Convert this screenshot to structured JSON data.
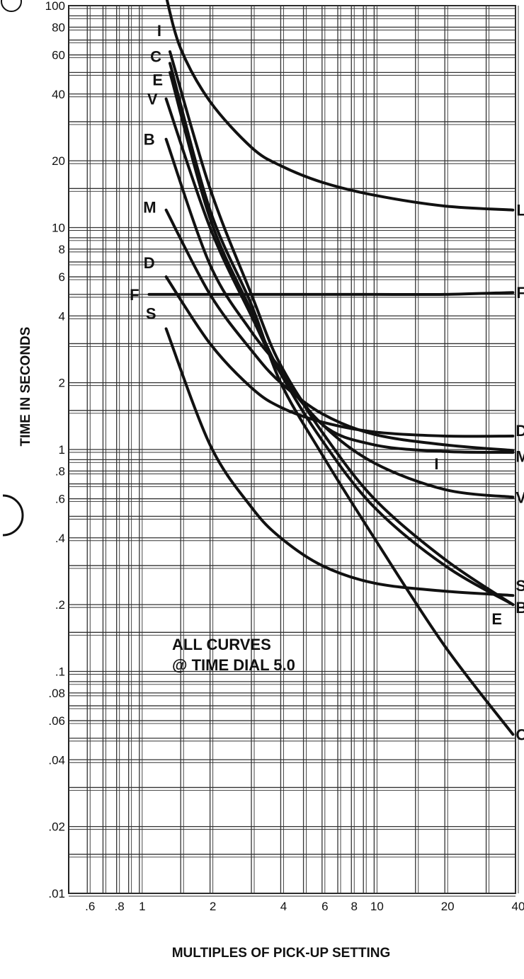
{
  "chart_data": {
    "type": "line",
    "x_scale": "log",
    "y_scale": "log",
    "xlim": [
      0.5,
      40
    ],
    "ylim": [
      0.01,
      100
    ],
    "grid": true,
    "xlabel": "MULTIPLES OF PICK-UP SETTING",
    "ylabel": "TIME IN SECONDS",
    "x_ticks": [
      {
        "value": 0.6,
        "label": ".6"
      },
      {
        "value": 0.8,
        "label": ".8"
      },
      {
        "value": 1,
        "label": "1"
      },
      {
        "value": 2,
        "label": "2"
      },
      {
        "value": 4,
        "label": "4"
      },
      {
        "value": 6,
        "label": "6"
      },
      {
        "value": 8,
        "label": "8"
      },
      {
        "value": 10,
        "label": "10"
      },
      {
        "value": 20,
        "label": "20"
      },
      {
        "value": 40,
        "label": "40"
      }
    ],
    "y_ticks": [
      {
        "value": 100,
        "label": "100"
      },
      {
        "value": 80,
        "label": "80"
      },
      {
        "value": 60,
        "label": "60"
      },
      {
        "value": 40,
        "label": "40"
      },
      {
        "value": 20,
        "label": "20"
      },
      {
        "value": 10,
        "label": "10"
      },
      {
        "value": 8,
        "label": "8"
      },
      {
        "value": 6,
        "label": "6"
      },
      {
        "value": 4,
        "label": "4"
      },
      {
        "value": 2,
        "label": "2"
      },
      {
        "value": 1,
        "label": "1"
      },
      {
        "value": 0.8,
        "label": ".8"
      },
      {
        "value": 0.6,
        "label": ".6"
      },
      {
        "value": 0.4,
        "label": ".4"
      },
      {
        "value": 0.2,
        "label": ".2"
      },
      {
        "value": 0.1,
        "label": ".1"
      },
      {
        "value": 0.08,
        "label": ".08"
      },
      {
        "value": 0.06,
        "label": ".06"
      },
      {
        "value": 0.04,
        "label": ".04"
      },
      {
        "value": 0.02,
        "label": ".02"
      },
      {
        "value": 0.01,
        "label": ".01"
      }
    ],
    "annotation": [
      "ALL CURVES",
      "@ TIME DIAL 5.0"
    ],
    "series": [
      {
        "name": "L",
        "x": [
          1.3,
          1.5,
          2,
          3,
          4,
          6,
          10,
          20,
          39
        ],
        "y": [
          110,
          64,
          37,
          23,
          19,
          16,
          14,
          12.5,
          12
        ]
      },
      {
        "name": "F",
        "x": [
          1.1,
          2,
          5,
          10,
          20,
          39
        ],
        "y": [
          5.0,
          5.0,
          5.0,
          5.0,
          5.0,
          5.1
        ]
      },
      {
        "name": "I",
        "x": [
          1.35,
          2,
          3,
          4,
          6,
          10,
          20,
          39
        ],
        "y": [
          62,
          15,
          5,
          2.4,
          1.3,
          1.05,
          0.98,
          0.97
        ]
      },
      {
        "name": "C",
        "x": [
          1.35,
          2,
          3,
          4,
          6,
          10,
          20,
          39
        ],
        "y": [
          55,
          12,
          4.5,
          2.0,
          0.95,
          0.4,
          0.13,
          0.052
        ]
      },
      {
        "name": "E",
        "x": [
          1.35,
          2,
          3,
          4,
          6,
          10,
          20,
          39
        ],
        "y": [
          50,
          11,
          4.2,
          2.2,
          1.1,
          0.55,
          0.3,
          0.2
        ]
      },
      {
        "name": "V",
        "x": [
          1.3,
          2,
          3,
          4,
          6,
          10,
          20,
          39
        ],
        "y": [
          38,
          10,
          4.0,
          2.2,
          1.3,
          0.87,
          0.66,
          0.61
        ]
      },
      {
        "name": "B",
        "x": [
          1.3,
          2,
          3,
          4,
          6,
          10,
          20,
          39
        ],
        "y": [
          25,
          6.8,
          3.4,
          2.3,
          1.2,
          0.6,
          0.32,
          0.2
        ]
      },
      {
        "name": "M",
        "x": [
          1.3,
          2,
          3,
          4,
          6,
          10,
          20,
          39
        ],
        "y": [
          12,
          5,
          2.8,
          2.0,
          1.45,
          1.17,
          1.05,
          0.99
        ]
      },
      {
        "name": "D",
        "x": [
          1.3,
          2,
          3,
          4,
          6,
          10,
          20,
          39
        ],
        "y": [
          6,
          3,
          1.9,
          1.55,
          1.33,
          1.2,
          1.15,
          1.15
        ]
      },
      {
        "name": "S",
        "x": [
          1.3,
          2,
          3,
          4,
          6,
          10,
          20,
          39
        ],
        "y": [
          3.5,
          1.05,
          0.55,
          0.4,
          0.3,
          0.25,
          0.23,
          0.22
        ]
      }
    ],
    "series_labels": [
      {
        "series": "L",
        "side": "start"
      },
      {
        "series": "I",
        "side": "start"
      },
      {
        "series": "C",
        "side": "start"
      },
      {
        "series": "E",
        "side": "start"
      },
      {
        "series": "V",
        "side": "start"
      },
      {
        "series": "B",
        "side": "start"
      },
      {
        "series": "M",
        "side": "start"
      },
      {
        "series": "D",
        "side": "start"
      },
      {
        "series": "F",
        "side": "start"
      },
      {
        "series": "S",
        "side": "start"
      },
      {
        "series": "L",
        "side": "end"
      },
      {
        "series": "F",
        "side": "end"
      },
      {
        "series": "D",
        "side": "end"
      },
      {
        "series": "M",
        "side": "end"
      },
      {
        "series": "I",
        "side": "end"
      },
      {
        "series": "V",
        "side": "end"
      },
      {
        "series": "S",
        "side": "end"
      },
      {
        "series": "E",
        "side": "end"
      },
      {
        "series": "B",
        "side": "end"
      },
      {
        "series": "C",
        "side": "end"
      }
    ]
  }
}
